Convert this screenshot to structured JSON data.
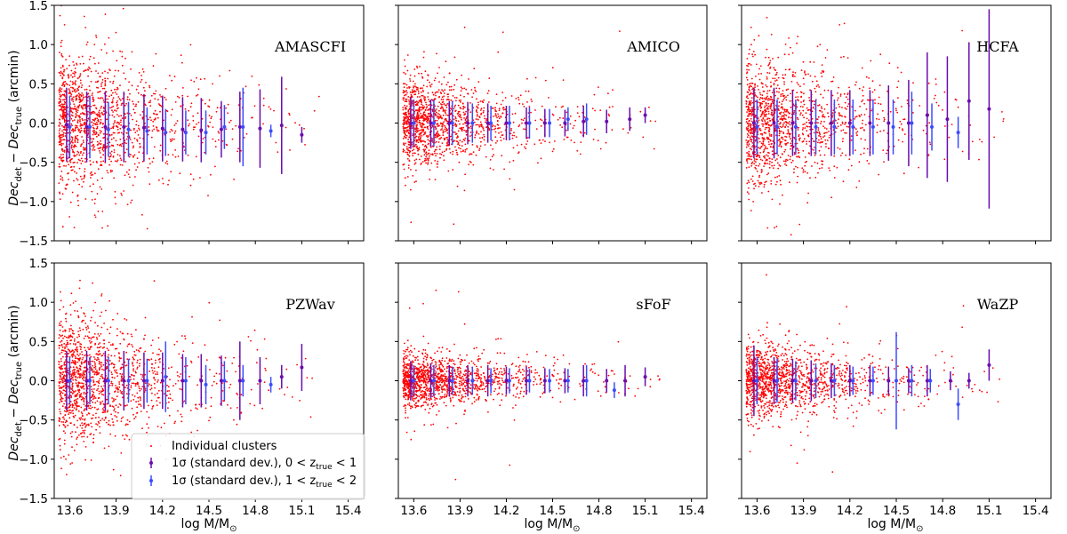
{
  "figure": {
    "xlabel": "log M/M",
    "xlabel_sub": "⊙",
    "ylabel_main": "Dec",
    "ylabel_sub1": "det",
    "ylabel_minus": " − ",
    "ylabel_main2": "Dec",
    "ylabel_sub2": "true",
    "ylabel_unit": " (arcmin)"
  },
  "legend": {
    "scatter_label": "Individual clusters",
    "low_z_label": "1σ (standard dev.), 0 < z",
    "high_z_label": "1σ (standard dev.), 1 < z",
    "z_sub": "true",
    "low_z_tail": " < 1",
    "high_z_tail": " < 2"
  },
  "colors": {
    "scatter": "#ff0000",
    "low_z": "#6a0dad",
    "high_z": "#3b4cff",
    "axes": "#000000"
  },
  "chart_data": [
    {
      "type": "scatter",
      "title": "AMASCFI",
      "xlim": [
        13.5,
        15.5
      ],
      "ylim": [
        -1.5,
        1.5
      ],
      "x_ticks": [
        "13.6",
        "13.9",
        "14.2",
        "14.5",
        "14.8",
        "15.1",
        "15.4"
      ],
      "y_ticks": [
        "1.5",
        "1.0",
        "0.5",
        "0.0",
        "−0.5",
        "−1.0",
        "−1.5"
      ],
      "scatter_spread": 0.42,
      "series": [
        {
          "name": "low_z",
          "x": [
            13.58,
            13.71,
            13.83,
            13.95,
            14.08,
            14.2,
            14.33,
            14.45,
            14.58,
            14.7,
            14.83,
            14.97,
            15.1
          ],
          "y": [
            -0.02,
            -0.05,
            -0.05,
            -0.05,
            -0.06,
            -0.07,
            -0.08,
            -0.09,
            -0.08,
            -0.05,
            -0.07,
            -0.03,
            -0.15
          ],
          "err": [
            0.47,
            0.45,
            0.45,
            0.45,
            0.43,
            0.42,
            0.41,
            0.41,
            0.36,
            0.45,
            0.5,
            0.62,
            0.1
          ]
        },
        {
          "name": "high_z",
          "x": [
            13.6,
            13.73,
            13.85,
            13.98,
            14.1,
            14.22,
            14.35,
            14.48,
            14.6,
            14.72,
            14.9
          ],
          "y": [
            -0.05,
            -0.05,
            -0.08,
            -0.08,
            -0.1,
            -0.12,
            -0.12,
            -0.12,
            -0.05,
            -0.05,
            -0.1
          ],
          "err": [
            0.4,
            0.4,
            0.35,
            0.35,
            0.3,
            0.3,
            0.28,
            0.28,
            0.28,
            0.5,
            0.08
          ]
        }
      ]
    },
    {
      "type": "scatter",
      "title": "AMICO",
      "xlim": [
        13.5,
        15.5
      ],
      "ylim": [
        -1.5,
        1.5
      ],
      "x_ticks": [
        "13.6",
        "13.9",
        "14.2",
        "14.5",
        "14.8",
        "15.1",
        "15.4"
      ],
      "y_ticks": [
        "1.5",
        "1.0",
        "0.5",
        "0.0",
        "−0.5",
        "−1.0",
        "−1.5"
      ],
      "scatter_spread": 0.27,
      "series": [
        {
          "name": "low_z",
          "x": [
            13.58,
            13.71,
            13.83,
            13.95,
            14.08,
            14.2,
            14.33,
            14.45,
            14.58,
            14.7,
            14.85,
            15.0,
            15.1
          ],
          "y": [
            0.0,
            0.0,
            0.0,
            0.0,
            0.0,
            0.0,
            0.0,
            0.0,
            0.0,
            0.02,
            0.02,
            0.05,
            0.1
          ],
          "err": [
            0.33,
            0.3,
            0.28,
            0.27,
            0.25,
            0.22,
            0.2,
            0.18,
            0.17,
            0.2,
            0.15,
            0.15,
            0.1
          ]
        },
        {
          "name": "high_z",
          "x": [
            13.6,
            13.73,
            13.85,
            13.98,
            14.1,
            14.22,
            14.35,
            14.48,
            14.6,
            14.72
          ],
          "y": [
            0.0,
            0.0,
            0.0,
            0.0,
            0.0,
            0.0,
            0.0,
            0.0,
            0.05,
            0.05
          ],
          "err": [
            0.3,
            0.3,
            0.28,
            0.25,
            0.22,
            0.22,
            0.2,
            0.18,
            0.15,
            0.2
          ]
        }
      ]
    },
    {
      "type": "scatter",
      "title": "HCFA",
      "xlim": [
        13.5,
        15.5
      ],
      "ylim": [
        -1.5,
        1.5
      ],
      "x_ticks": [
        "13.6",
        "13.9",
        "14.2",
        "14.5",
        "14.8",
        "15.1",
        "15.4"
      ],
      "y_ticks": [
        "1.5",
        "1.0",
        "0.5",
        "0.0",
        "−0.5",
        "−1.0",
        "−1.5"
      ],
      "scatter_spread": 0.38,
      "series": [
        {
          "name": "low_z",
          "x": [
            13.58,
            13.71,
            13.83,
            13.95,
            14.08,
            14.2,
            14.33,
            14.45,
            14.58,
            14.7,
            14.83,
            14.97,
            15.1
          ],
          "y": [
            0.0,
            0.0,
            0.0,
            0.0,
            0.0,
            0.0,
            0.0,
            0.0,
            0.0,
            0.1,
            0.05,
            0.28,
            0.18
          ],
          "err": [
            0.45,
            0.45,
            0.42,
            0.42,
            0.42,
            0.42,
            0.42,
            0.48,
            0.55,
            0.8,
            0.8,
            0.75,
            1.27
          ]
        },
        {
          "name": "high_z",
          "x": [
            13.6,
            13.73,
            13.85,
            13.98,
            14.1,
            14.22,
            14.35,
            14.48,
            14.6,
            14.73,
            14.9
          ],
          "y": [
            -0.05,
            -0.05,
            -0.05,
            -0.05,
            -0.05,
            -0.05,
            -0.05,
            -0.05,
            0.0,
            -0.05,
            -0.12
          ],
          "err": [
            0.35,
            0.35,
            0.35,
            0.35,
            0.35,
            0.35,
            0.35,
            0.35,
            0.4,
            0.3,
            0.2
          ]
        }
      ]
    },
    {
      "type": "scatter",
      "title": "PZWav",
      "xlim": [
        13.5,
        15.5
      ],
      "ylim": [
        -1.5,
        1.5
      ],
      "x_ticks": [
        "13.6",
        "13.9",
        "14.2",
        "14.5",
        "14.8",
        "15.1",
        "15.4"
      ],
      "y_ticks": [
        "1.5",
        "1.0",
        "0.5",
        "0.0",
        "−0.5",
        "−1.0",
        "−1.5"
      ],
      "scatter_spread": 0.38,
      "series": [
        {
          "name": "low_z",
          "x": [
            13.58,
            13.71,
            13.83,
            13.95,
            14.08,
            14.2,
            14.33,
            14.45,
            14.58,
            14.7,
            14.83,
            14.97,
            15.1
          ],
          "y": [
            0.0,
            0.0,
            0.0,
            0.0,
            0.0,
            0.0,
            0.0,
            0.0,
            0.0,
            0.0,
            0.0,
            0.05,
            0.17
          ],
          "err": [
            0.38,
            0.38,
            0.38,
            0.38,
            0.36,
            0.36,
            0.34,
            0.34,
            0.32,
            0.5,
            0.3,
            0.15,
            0.3
          ]
        },
        {
          "name": "high_z",
          "x": [
            13.6,
            13.73,
            13.85,
            13.98,
            14.1,
            14.22,
            14.35,
            14.48,
            14.6,
            14.72,
            14.9
          ],
          "y": [
            0.0,
            0.0,
            0.0,
            0.0,
            0.0,
            0.05,
            0.0,
            -0.05,
            0.0,
            0.0,
            -0.05
          ],
          "err": [
            0.3,
            0.3,
            0.3,
            0.28,
            0.28,
            0.45,
            0.3,
            0.25,
            0.25,
            0.2,
            0.1
          ]
        }
      ]
    },
    {
      "type": "scatter",
      "title": "sFoF",
      "xlim": [
        13.5,
        15.5
      ],
      "ylim": [
        -1.5,
        1.5
      ],
      "x_ticks": [
        "13.6",
        "13.9",
        "14.2",
        "14.5",
        "14.8",
        "15.1",
        "15.4"
      ],
      "y_ticks": [
        "1.5",
        "1.0",
        "0.5",
        "0.0",
        "−0.5",
        "−1.0",
        "−1.5"
      ],
      "scatter_spread": 0.16,
      "series": [
        {
          "name": "low_z",
          "x": [
            13.58,
            13.71,
            13.83,
            13.95,
            14.08,
            14.2,
            14.33,
            14.45,
            14.58,
            14.7,
            14.85,
            14.97,
            15.1
          ],
          "y": [
            0.0,
            0.0,
            0.0,
            0.0,
            0.0,
            0.0,
            0.0,
            0.0,
            0.0,
            0.0,
            0.0,
            0.0,
            0.05
          ],
          "err": [
            0.25,
            0.22,
            0.2,
            0.2,
            0.2,
            0.18,
            0.18,
            0.16,
            0.16,
            0.2,
            0.15,
            0.2,
            0.12
          ]
        },
        {
          "name": "high_z",
          "x": [
            13.6,
            13.73,
            13.85,
            13.98,
            14.1,
            14.22,
            14.35,
            14.48,
            14.6,
            14.72,
            14.9
          ],
          "y": [
            0.0,
            0.0,
            0.0,
            0.0,
            0.0,
            0.0,
            0.0,
            0.0,
            0.0,
            0.0,
            -0.12
          ],
          "err": [
            0.2,
            0.2,
            0.18,
            0.18,
            0.16,
            0.16,
            0.15,
            0.15,
            0.15,
            0.2,
            0.1
          ]
        }
      ]
    },
    {
      "type": "scatter",
      "title": "WaZP",
      "xlim": [
        13.5,
        15.5
      ],
      "ylim": [
        -1.5,
        1.5
      ],
      "x_ticks": [
        "13.6",
        "13.9",
        "14.2",
        "14.5",
        "14.8",
        "15.1",
        "15.4"
      ],
      "y_ticks": [
        "1.5",
        "1.0",
        "0.5",
        "0.0",
        "−0.5",
        "−1.0",
        "−1.5"
      ],
      "scatter_spread": 0.22,
      "series": [
        {
          "name": "low_z",
          "x": [
            13.58,
            13.71,
            13.83,
            13.95,
            14.08,
            14.2,
            14.33,
            14.45,
            14.58,
            14.7,
            14.85,
            14.97,
            15.1
          ],
          "y": [
            0.0,
            0.0,
            0.0,
            0.0,
            0.0,
            0.0,
            0.0,
            0.0,
            0.0,
            0.0,
            0.0,
            0.0,
            0.2
          ],
          "err": [
            0.45,
            0.3,
            0.28,
            0.26,
            0.22,
            0.2,
            0.2,
            0.18,
            0.16,
            0.2,
            0.12,
            0.1,
            0.2
          ]
        },
        {
          "name": "high_z",
          "x": [
            13.6,
            13.73,
            13.85,
            13.98,
            14.1,
            14.22,
            14.35,
            14.5,
            14.6,
            14.72,
            14.9
          ],
          "y": [
            0.0,
            0.0,
            0.0,
            0.0,
            0.0,
            0.0,
            0.0,
            0.0,
            0.0,
            0.0,
            -0.3
          ],
          "err": [
            0.3,
            0.28,
            0.25,
            0.22,
            0.2,
            0.18,
            0.18,
            0.62,
            0.2,
            0.15,
            0.2
          ]
        }
      ]
    }
  ]
}
